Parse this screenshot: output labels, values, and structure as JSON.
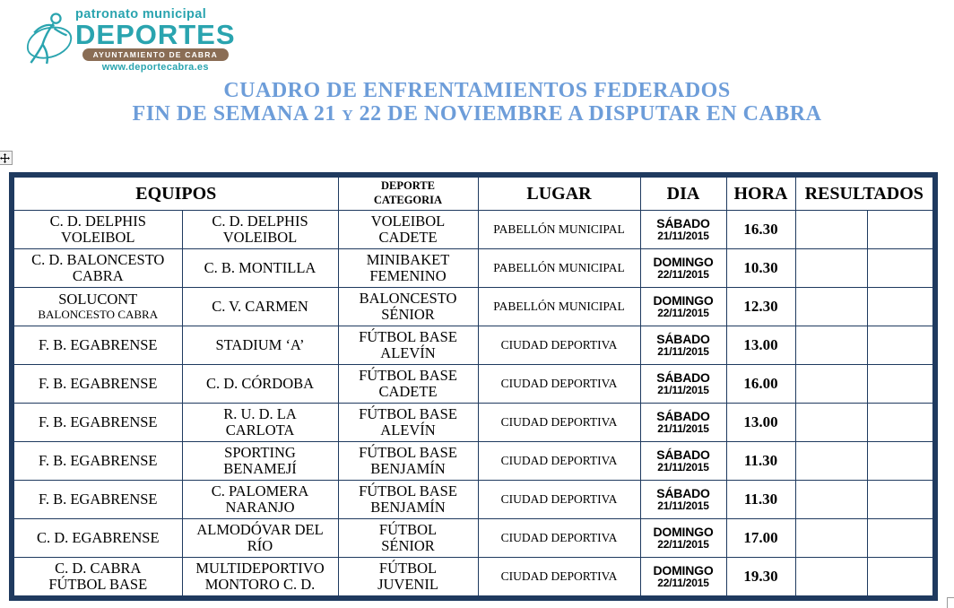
{
  "logo": {
    "line1": "patronato municipal",
    "line2": "DEPORTES",
    "banner": "AYUNTAMIENTO DE CABRA",
    "website": "www.deportecabra.es"
  },
  "title": {
    "line1": "CUADRO DE ENFRENTAMIENTOS FEDERADOS",
    "line2": "FIN DE SEMANA 21 y 22 DE NOVIEMBRE A DISPUTAR EN CABRA"
  },
  "table": {
    "headers": {
      "equipos": "EQUIPOS",
      "deporte_line1": "DEPORTE",
      "deporte_line2": "CATEGORIA",
      "lugar": "LUGAR",
      "dia": "DIA",
      "hora": "HORA",
      "resultados": "RESULTADOS"
    },
    "rows": [
      {
        "local": "C. D. DELPHIS\nVOLEIBOL",
        "local_sub": "",
        "visitante": "C. D. DELPHIS\nVOLEIBOL",
        "categoria": "VOLEIBOL\nCADETE",
        "lugar": "PABELLÓN MUNICIPAL",
        "dia": "SÁBADO",
        "fecha": "21/11/2015",
        "hora": "16.30",
        "resultado_a": "",
        "resultado_b": ""
      },
      {
        "local": "C. D. BALONCESTO\nCABRA",
        "local_sub": "",
        "visitante": "C. B. MONTILLA",
        "categoria": "MINIBAKET\nFEMENINO",
        "lugar": "PABELLÓN MUNICIPAL",
        "dia": "DOMINGO",
        "fecha": "22/11/2015",
        "hora": "10.30",
        "resultado_a": "",
        "resultado_b": ""
      },
      {
        "local": "SOLUCONT",
        "local_sub": "BALONCESTO CABRA",
        "visitante": "C. V. CARMEN",
        "categoria": "BALONCESTO\nSÉNIOR",
        "lugar": "PABELLÓN MUNICIPAL",
        "dia": "DOMINGO",
        "fecha": "22/11/2015",
        "hora": "12.30",
        "resultado_a": "",
        "resultado_b": ""
      },
      {
        "local": "F. B. EGABRENSE",
        "local_sub": "",
        "visitante": "STADIUM ‘A’",
        "categoria": "FÚTBOL BASE\nALEVÍN",
        "lugar": "CIUDAD DEPORTIVA",
        "dia": "SÁBADO",
        "fecha": "21/11/2015",
        "hora": "13.00",
        "resultado_a": "",
        "resultado_b": ""
      },
      {
        "local": "F. B. EGABRENSE",
        "local_sub": "",
        "visitante": "C. D. CÓRDOBA",
        "categoria": "FÚTBOL BASE\nCADETE",
        "lugar": "CIUDAD DEPORTIVA",
        "dia": "SÁBADO",
        "fecha": "21/11/2015",
        "hora": "16.00",
        "resultado_a": "",
        "resultado_b": ""
      },
      {
        "local": "F. B. EGABRENSE",
        "local_sub": "",
        "visitante": "R. U. D. LA\nCARLOTA",
        "categoria": "FÚTBOL BASE\nALEVÍN",
        "lugar": "CIUDAD DEPORTIVA",
        "dia": "SÁBADO",
        "fecha": "21/11/2015",
        "hora": "13.00",
        "resultado_a": "",
        "resultado_b": ""
      },
      {
        "local": "F. B. EGABRENSE",
        "local_sub": "",
        "visitante": "SPORTING\nBENAMEJÍ",
        "categoria": "FÚTBOL BASE\nBENJAMÍN",
        "lugar": "CIUDAD DEPORTIVA",
        "dia": "SÁBADO",
        "fecha": "21/11/2015",
        "hora": "11.30",
        "resultado_a": "",
        "resultado_b": ""
      },
      {
        "local": "F. B. EGABRENSE",
        "local_sub": "",
        "visitante": "C. PALOMERA\nNARANJO",
        "categoria": "FÚTBOL BASE\nBENJAMÍN",
        "lugar": "CIUDAD DEPORTIVA",
        "dia": "SÁBADO",
        "fecha": "21/11/2015",
        "hora": "11.30",
        "resultado_a": "",
        "resultado_b": ""
      },
      {
        "local": "C. D. EGABRENSE",
        "local_sub": "",
        "visitante": "ALMODÓVAR DEL\nRÍO",
        "categoria": "FÚTBOL\nSÉNIOR",
        "lugar": "CIUDAD DEPORTIVA",
        "dia": "DOMINGO",
        "fecha": "22/11/2015",
        "hora": "17.00",
        "resultado_a": "",
        "resultado_b": ""
      },
      {
        "local": "C. D. CABRA\nFÚTBOL BASE",
        "local_sub": "",
        "visitante": "MULTIDEPORTIVO\nMONTORO C. D.",
        "categoria": "FÚTBOL\nJUVENIL",
        "lugar": "CIUDAD DEPORTIVA",
        "dia": "DOMINGO",
        "fecha": "22/11/2015",
        "hora": "19.30",
        "resultado_a": "",
        "resultado_b": ""
      }
    ]
  },
  "colors": {
    "title_blue": "#6D9DD9",
    "table_border_navy": "#1F3A5F",
    "logo_teal": "#2AA4AF",
    "logo_brown": "#8A6D55"
  }
}
